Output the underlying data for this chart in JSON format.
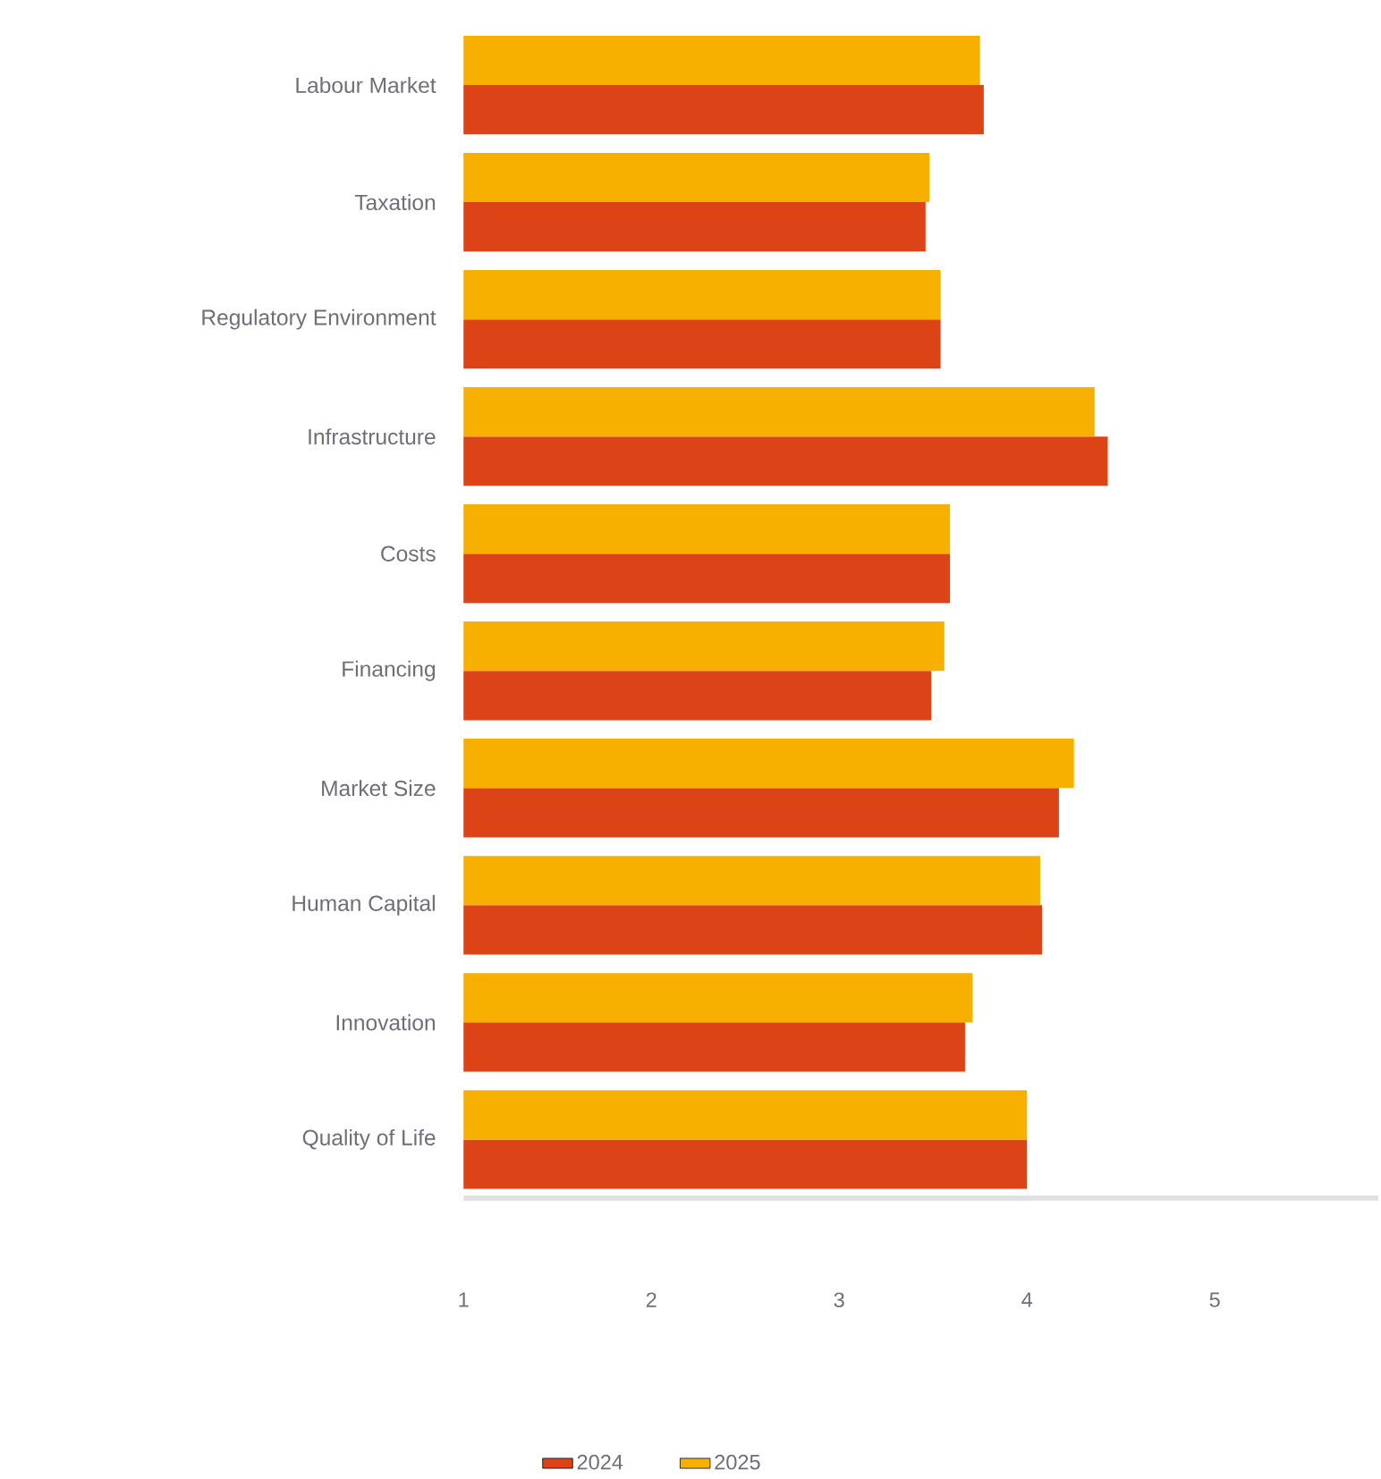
{
  "chart_data": {
    "type": "bar",
    "orientation": "horizontal",
    "categories": [
      "Labour Market",
      "Taxation",
      "Regulatory Environment",
      "Infrastructure",
      "Costs",
      "Financing",
      "Market Size",
      "Human Capital",
      "Innovation",
      "Quality of Life"
    ],
    "series": [
      {
        "name": "2024",
        "color": "#dc4418",
        "values": [
          3.77,
          3.46,
          3.54,
          4.43,
          3.59,
          3.49,
          4.17,
          4.08,
          3.67,
          4.0
        ]
      },
      {
        "name": "2025",
        "color": "#f7b000",
        "values": [
          3.75,
          3.48,
          3.54,
          4.36,
          3.59,
          3.56,
          4.25,
          4.07,
          3.71,
          4.0
        ]
      }
    ],
    "xlim": [
      1,
      5.87
    ],
    "xticks": [
      1,
      2,
      3,
      4,
      5
    ],
    "legend": "bottom"
  }
}
